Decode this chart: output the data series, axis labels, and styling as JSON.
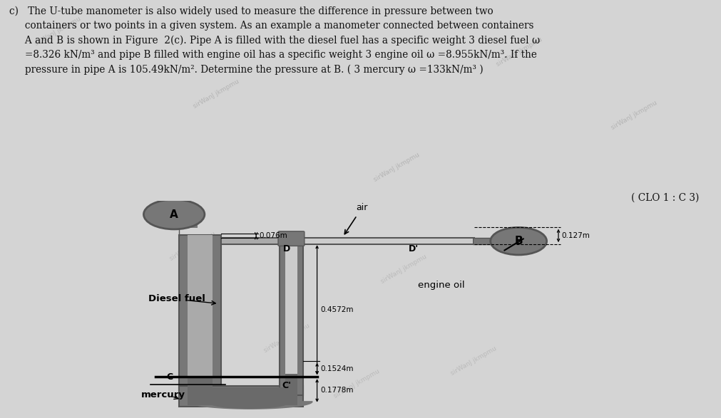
{
  "bg_color": "#d4d4d4",
  "diagram_bg": "#c8c8c8",
  "pipe_outer": "#555555",
  "pipe_inner_fluid": "#aaaaaa",
  "pipe_inner_air": "#cccccc",
  "mercury_color": "#6a6a6a",
  "text_color": "#111111",
  "line1": "c)   The U-tube manometer is also widely used to measure the difference in pressure between two",
  "line2": "     containers or two points in a given system. As an example a manometer connected between containers",
  "line3": "     A and B is shown in Figure  2(c). Pipe A is filled with the diesel fuel has a specific weight 3 diesel fuel ω",
  "line4": "     =8.326 kN/m³ and pipe B filled with engine oil has a specific weight 3 engine oil ω =8.955kN/m³. If the",
  "line5": "     pressure in pipe A is 105.49kN/m². Determine the pressure at B. ( 3 mercury ω =133kN/m³ )",
  "clo": "( CLO 1 : C 3)",
  "dim_076": "0.076m",
  "dim_4572": "0.4572m",
  "dim_1524": "0.1524m",
  "dim_1778": "0.1778m",
  "dim_127": "0.127m",
  "lbl_A": "A",
  "lbl_B": "B",
  "lbl_C": "C",
  "lbl_Cp": "C'",
  "lbl_D": "D",
  "lbl_Dp": "D'",
  "lbl_air": "air",
  "lbl_diesel": "Diesel fuel",
  "lbl_engine": "engine oil",
  "lbl_mercury": "mercury",
  "watermark": "sirWanJ jkmpmu"
}
